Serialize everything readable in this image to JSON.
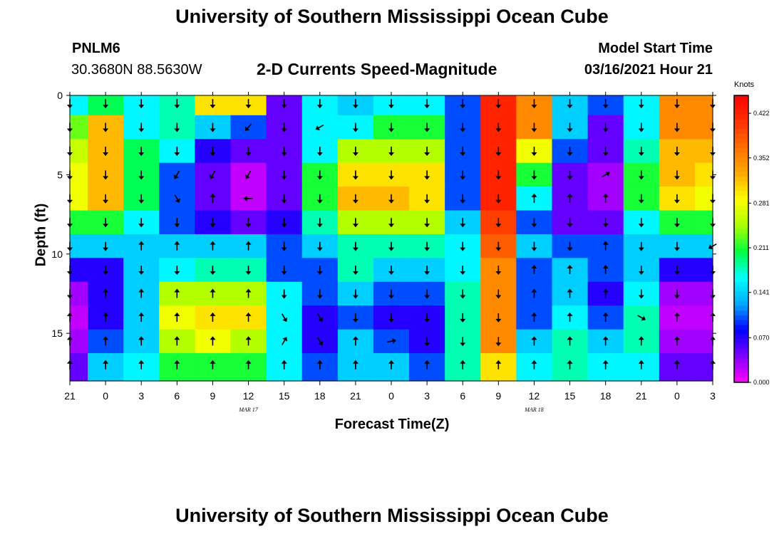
{
  "header": {
    "title": "University of Southern Mississippi Ocean Cube",
    "station": "PNLM6",
    "coordinates": "30.3680N 88.5630W",
    "plot_title": "2-D Currents Speed-Magnitude",
    "model_start_label": "Model Start Time",
    "model_start_value": "03/16/2021 Hour 21"
  },
  "footer": {
    "title": "University of Southern Mississippi Ocean Cube"
  },
  "chart_data": {
    "type": "heatmap",
    "title": "2-D Currents Speed-Magnitude",
    "xlabel": "Forecast Time(Z)",
    "ylabel": "Depth (ft)",
    "x_tick_labels": [
      "21",
      "0",
      "3",
      "6",
      "9",
      "12",
      "15",
      "18",
      "21",
      "0",
      "3",
      "6",
      "9",
      "12",
      "15",
      "18",
      "21",
      "0",
      "3"
    ],
    "x_date_labels": [
      {
        "label": "MAR 17",
        "at_hour_index": 5
      },
      {
        "label": "MAR 18",
        "at_hour_index": 13
      }
    ],
    "y_ticks": [
      0,
      5,
      10,
      15
    ],
    "ylim": [
      0,
      18
    ],
    "colorbar": {
      "label": "Knots",
      "ticks": [
        "0.422",
        "0.352",
        "0.281",
        "0.211",
        "0.141",
        "0.070",
        "0.000"
      ],
      "range": [
        0.0,
        0.45
      ],
      "colors": [
        "#ff00ff",
        "#8000ff",
        "#0000ff",
        "#00aaff",
        "#00ffff",
        "#00ff40",
        "#aaff00",
        "#ffff00",
        "#ffaa00",
        "#ff7000",
        "#ff3000",
        "#ff0000"
      ]
    },
    "depth_rows": [
      0.5,
      2.0,
      3.5,
      5.0,
      6.5,
      8.0,
      9.5,
      11.0,
      12.5,
      14.0,
      15.5,
      17.0
    ],
    "hour_columns": [
      0,
      3,
      6,
      9,
      12,
      15,
      18,
      21,
      24,
      27,
      30,
      33,
      36,
      39,
      42,
      45,
      48,
      51,
      54
    ],
    "speed_knots": [
      [
        0.16,
        0.2,
        0.16,
        0.18,
        0.3,
        0.3,
        0.05,
        0.16,
        0.14,
        0.16,
        0.16,
        0.1,
        0.42,
        0.35,
        0.14,
        0.1,
        0.16,
        0.35,
        0.35
      ],
      [
        0.23,
        0.32,
        0.16,
        0.18,
        0.14,
        0.1,
        0.05,
        0.16,
        0.16,
        0.21,
        0.21,
        0.1,
        0.42,
        0.35,
        0.14,
        0.05,
        0.16,
        0.35,
        0.35
      ],
      [
        0.26,
        0.32,
        0.2,
        0.16,
        0.07,
        0.05,
        0.05,
        0.16,
        0.25,
        0.25,
        0.25,
        0.1,
        0.42,
        0.28,
        0.1,
        0.05,
        0.18,
        0.32,
        0.32
      ],
      [
        0.28,
        0.32,
        0.2,
        0.1,
        0.05,
        0.02,
        0.05,
        0.21,
        0.3,
        0.3,
        0.3,
        0.1,
        0.42,
        0.21,
        0.05,
        0.03,
        0.21,
        0.32,
        0.3
      ],
      [
        0.28,
        0.32,
        0.2,
        0.1,
        0.05,
        0.02,
        0.05,
        0.21,
        0.32,
        0.32,
        0.3,
        0.1,
        0.42,
        0.16,
        0.05,
        0.03,
        0.21,
        0.3,
        0.28
      ],
      [
        0.21,
        0.21,
        0.16,
        0.1,
        0.07,
        0.05,
        0.07,
        0.18,
        0.25,
        0.25,
        0.25,
        0.14,
        0.4,
        0.1,
        0.05,
        0.05,
        0.16,
        0.21,
        0.21
      ],
      [
        0.14,
        0.14,
        0.14,
        0.14,
        0.14,
        0.14,
        0.1,
        0.14,
        0.18,
        0.18,
        0.18,
        0.16,
        0.38,
        0.14,
        0.1,
        0.1,
        0.14,
        0.14,
        0.14
      ],
      [
        0.07,
        0.07,
        0.14,
        0.16,
        0.18,
        0.18,
        0.1,
        0.1,
        0.18,
        0.14,
        0.14,
        0.16,
        0.35,
        0.1,
        0.14,
        0.1,
        0.14,
        0.07,
        0.07
      ],
      [
        0.03,
        0.07,
        0.14,
        0.25,
        0.25,
        0.25,
        0.16,
        0.1,
        0.14,
        0.1,
        0.1,
        0.18,
        0.35,
        0.1,
        0.14,
        0.07,
        0.16,
        0.03,
        0.03
      ],
      [
        0.02,
        0.07,
        0.14,
        0.28,
        0.3,
        0.3,
        0.16,
        0.07,
        0.1,
        0.07,
        0.07,
        0.18,
        0.35,
        0.1,
        0.16,
        0.1,
        0.18,
        0.02,
        0.02
      ],
      [
        0.03,
        0.1,
        0.14,
        0.25,
        0.28,
        0.25,
        0.16,
        0.07,
        0.14,
        0.1,
        0.07,
        0.18,
        0.35,
        0.14,
        0.18,
        0.14,
        0.18,
        0.03,
        0.03
      ],
      [
        0.05,
        0.14,
        0.16,
        0.21,
        0.21,
        0.21,
        0.16,
        0.1,
        0.14,
        0.14,
        0.1,
        0.18,
        0.3,
        0.16,
        0.18,
        0.16,
        0.16,
        0.05,
        0.05
      ]
    ],
    "vector_directions_deg": [
      [
        180,
        180,
        180,
        180,
        180,
        180,
        180,
        180,
        180,
        180,
        180,
        180,
        180,
        180,
        180,
        180,
        180,
        180,
        180
      ],
      [
        180,
        180,
        180,
        180,
        180,
        220,
        180,
        240,
        180,
        180,
        180,
        180,
        180,
        180,
        180,
        180,
        180,
        180,
        180
      ],
      [
        180,
        180,
        180,
        180,
        180,
        180,
        180,
        180,
        180,
        180,
        180,
        180,
        180,
        180,
        180,
        180,
        180,
        180,
        180
      ],
      [
        180,
        180,
        180,
        210,
        210,
        210,
        180,
        180,
        180,
        180,
        180,
        180,
        180,
        180,
        180,
        60,
        180,
        180,
        180
      ],
      [
        180,
        180,
        180,
        150,
        0,
        270,
        180,
        180,
        180,
        180,
        180,
        180,
        180,
        0,
        0,
        0,
        180,
        180,
        180
      ],
      [
        180,
        180,
        180,
        180,
        180,
        180,
        180,
        180,
        180,
        180,
        180,
        180,
        180,
        180,
        180,
        180,
        180,
        180,
        180
      ],
      [
        180,
        180,
        0,
        0,
        0,
        0,
        180,
        180,
        180,
        180,
        180,
        180,
        180,
        180,
        180,
        0,
        180,
        180,
        240
      ],
      [
        180,
        180,
        180,
        180,
        180,
        180,
        180,
        180,
        180,
        180,
        180,
        180,
        180,
        0,
        0,
        0,
        180,
        180,
        180
      ],
      [
        180,
        0,
        0,
        0,
        0,
        0,
        180,
        180,
        180,
        180,
        180,
        180,
        180,
        0,
        0,
        0,
        180,
        180,
        180
      ],
      [
        0,
        0,
        0,
        0,
        0,
        0,
        150,
        150,
        180,
        180,
        180,
        180,
        180,
        0,
        0,
        0,
        120,
        0,
        0
      ],
      [
        0,
        0,
        0,
        0,
        0,
        0,
        30,
        150,
        0,
        80,
        180,
        180,
        180,
        0,
        0,
        0,
        0,
        0,
        0
      ],
      [
        0,
        0,
        0,
        0,
        0,
        0,
        0,
        0,
        0,
        0,
        0,
        0,
        0,
        0,
        0,
        0,
        0,
        0,
        0
      ]
    ]
  }
}
